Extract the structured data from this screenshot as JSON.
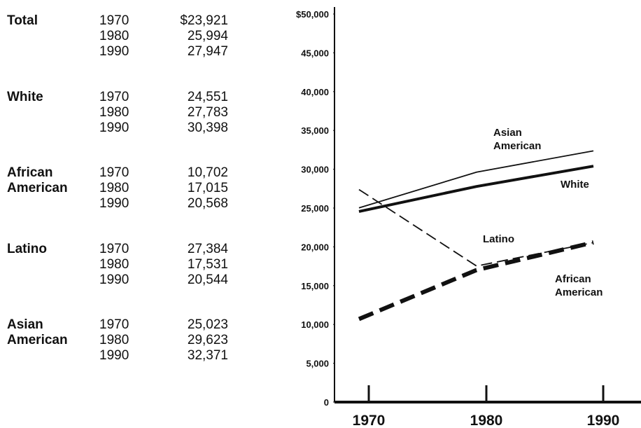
{
  "table": {
    "groups": [
      {
        "name": "Total",
        "rows": [
          [
            "1970",
            "$23,921"
          ],
          [
            "1980",
            "25,994"
          ],
          [
            "1990",
            "27,947"
          ]
        ]
      },
      {
        "name": "White",
        "rows": [
          [
            "1970",
            "24,551"
          ],
          [
            "1980",
            "27,783"
          ],
          [
            "1990",
            "30,398"
          ]
        ]
      },
      {
        "name": "African American",
        "rows": [
          [
            "1970",
            "10,702"
          ],
          [
            "1980",
            "17,015"
          ],
          [
            "1990",
            "20,568"
          ]
        ]
      },
      {
        "name": "Latino",
        "rows": [
          [
            "1970",
            "27,384"
          ],
          [
            "1980",
            "17,531"
          ],
          [
            "1990",
            "20,544"
          ]
        ]
      },
      {
        "name": "Asian American",
        "rows": [
          [
            "1970",
            "25,023"
          ],
          [
            "1980",
            "29,623"
          ],
          [
            "1990",
            "32,371"
          ]
        ]
      }
    ]
  },
  "chart_data": {
    "type": "line",
    "categories": [
      "1970",
      "1980",
      "1990"
    ],
    "series": [
      {
        "name": "Asian American",
        "color": "#111111",
        "style": "solid",
        "weight": "thin",
        "values": [
          25023,
          29623,
          32371
        ]
      },
      {
        "name": "White",
        "color": "#111111",
        "style": "solid",
        "weight": "thick",
        "values": [
          24551,
          27783,
          30398
        ]
      },
      {
        "name": "Latino",
        "color": "#111111",
        "style": "dashed",
        "weight": "thin",
        "values": [
          27384,
          17531,
          20544
        ]
      },
      {
        "name": "African American",
        "color": "#111111",
        "style": "dashed",
        "weight": "thick",
        "values": [
          10702,
          17015,
          20568
        ]
      }
    ],
    "ylim": [
      0,
      50000
    ],
    "yticks": [
      0,
      {
        "value": 5000,
        "label": "5,000"
      },
      {
        "value": 10000,
        "label": "10,000"
      },
      {
        "value": 15000,
        "label": "15,000"
      },
      {
        "value": 20000,
        "label": "20,000"
      },
      {
        "value": 25000,
        "label": "25,000"
      },
      {
        "value": 30000,
        "label": "30,000"
      },
      {
        "value": 35000,
        "label": "35,000"
      },
      {
        "value": 40000,
        "label": "40,000"
      },
      {
        "value": 45000,
        "label": "45,000"
      },
      {
        "value": 50000,
        "label": "$50,000"
      }
    ]
  }
}
